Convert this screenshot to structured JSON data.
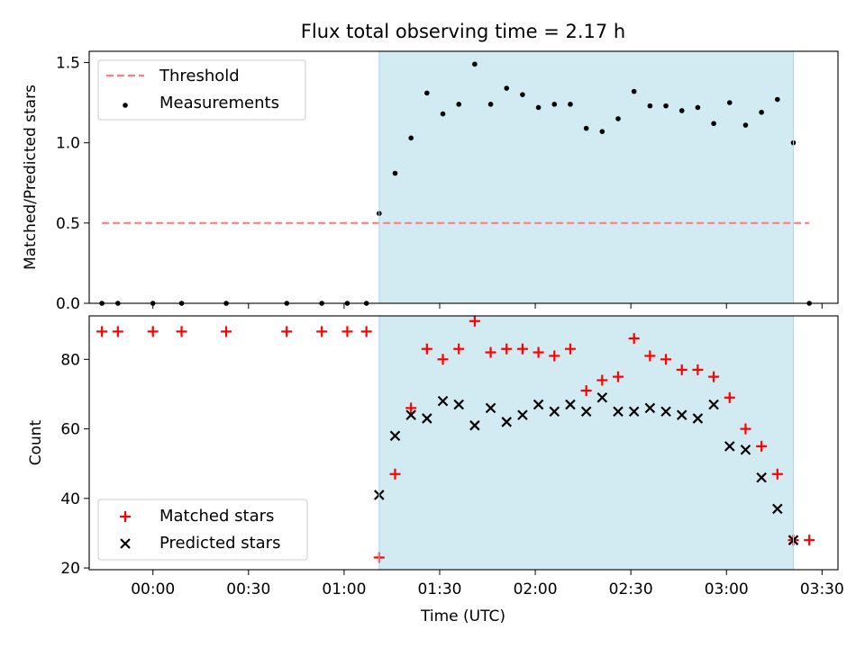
{
  "chart_data": [
    {
      "type": "scatter",
      "title": "Flux total observing time = 2.17 h",
      "xlabel": "",
      "ylabel": "Matched/Predicted stars",
      "ylim": [
        0,
        1.57
      ],
      "xlim": [
        "23:40",
        "03:35"
      ],
      "x_ticks": [
        "00:00",
        "00:30",
        "01:00",
        "01:30",
        "02:00",
        "02:30",
        "03:00",
        "03:30"
      ],
      "y_ticks": [
        "0.0",
        "0.5",
        "1.0",
        "1.5"
      ],
      "shaded_span": {
        "from": "01:11",
        "to": "03:21",
        "color": "#add8e6"
      },
      "threshold": {
        "name": "Threshold",
        "value": 0.5,
        "from": "23:44",
        "to": "03:26",
        "color": "#ff7f7f"
      },
      "legend_position": "upper left",
      "series": [
        {
          "name": "Measurements",
          "color": "#000000",
          "x": [
            "23:44",
            "23:49",
            "00:00",
            "00:09",
            "00:23",
            "00:42",
            "00:53",
            "01:01",
            "01:07",
            "01:11",
            "01:16",
            "01:21",
            "01:26",
            "01:31",
            "01:36",
            "01:41",
            "01:46",
            "01:51",
            "01:56",
            "02:01",
            "02:06",
            "02:11",
            "02:16",
            "02:21",
            "02:26",
            "02:31",
            "02:36",
            "02:41",
            "02:46",
            "02:51",
            "02:56",
            "03:01",
            "03:06",
            "03:11",
            "03:16",
            "03:21",
            "03:26"
          ],
          "y": [
            0,
            0,
            0,
            0,
            0,
            0,
            0,
            0,
            0,
            0.56,
            0.81,
            1.03,
            1.31,
            1.18,
            1.24,
            1.49,
            1.24,
            1.34,
            1.3,
            1.22,
            1.24,
            1.24,
            1.09,
            1.07,
            1.15,
            1.32,
            1.23,
            1.23,
            1.2,
            1.22,
            1.12,
            1.25,
            1.11,
            1.19,
            1.27,
            1.0,
            0
          ]
        }
      ]
    },
    {
      "type": "scatter",
      "xlabel": "Time (UTC)",
      "ylabel": "Count",
      "ylim": [
        19.5,
        92.5
      ],
      "xlim": [
        "23:40",
        "03:35"
      ],
      "x_ticks": [
        "00:00",
        "00:30",
        "01:00",
        "01:30",
        "02:00",
        "02:30",
        "03:00",
        "03:30"
      ],
      "y_ticks": [
        "20",
        "40",
        "60",
        "80"
      ],
      "shaded_span": {
        "from": "01:11",
        "to": "03:21",
        "color": "#add8e6"
      },
      "legend_position": "lower left",
      "series": [
        {
          "name": "Matched stars",
          "color": "#ff0000",
          "marker": "+",
          "x": [
            "23:44",
            "23:49",
            "00:00",
            "00:09",
            "00:23",
            "00:42",
            "00:53",
            "01:01",
            "01:07",
            "01:11",
            "01:16",
            "01:21",
            "01:26",
            "01:31",
            "01:36",
            "01:41",
            "01:46",
            "01:51",
            "01:56",
            "02:01",
            "02:06",
            "02:11",
            "02:16",
            "02:21",
            "02:26",
            "02:31",
            "02:36",
            "02:41",
            "02:46",
            "02:51",
            "02:56",
            "03:01",
            "03:06",
            "03:11",
            "03:16",
            "03:21",
            "03:26"
          ],
          "y": [
            88,
            88,
            88,
            88,
            88,
            88,
            88,
            88,
            88,
            23,
            47,
            66,
            83,
            80,
            83,
            91,
            82,
            83,
            83,
            82,
            81,
            83,
            71,
            74,
            75,
            86,
            81,
            80,
            77,
            77,
            75,
            69,
            60,
            55,
            47,
            28,
            28
          ]
        },
        {
          "name": "Predicted stars",
          "color": "#000000",
          "marker": "x",
          "x": [
            "01:11",
            "01:16",
            "01:21",
            "01:26",
            "01:31",
            "01:36",
            "01:41",
            "01:46",
            "01:51",
            "01:56",
            "02:01",
            "02:06",
            "02:11",
            "02:16",
            "02:21",
            "02:26",
            "02:31",
            "02:36",
            "02:41",
            "02:46",
            "02:51",
            "02:56",
            "03:01",
            "03:06",
            "03:11",
            "03:16",
            "03:21"
          ],
          "y": [
            41,
            58,
            64,
            63,
            68,
            67,
            61,
            66,
            62,
            64,
            67,
            65,
            67,
            65,
            69,
            65,
            65,
            66,
            65,
            64,
            63,
            67,
            55,
            54,
            46,
            37,
            28
          ]
        }
      ]
    }
  ]
}
